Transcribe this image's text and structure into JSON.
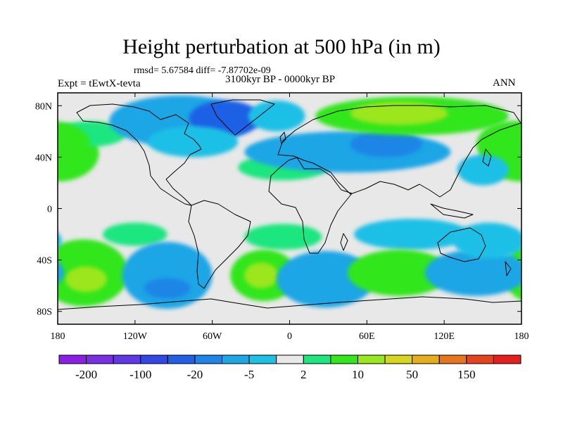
{
  "figure": {
    "title": "Height perturbation at 500 hPa (in m)",
    "stats": "rmsd= 5.67584 diff= -7.87702e-09",
    "left_label": "Expt = tEwtX-tevta",
    "center_label": "3100kyr BP - 0000kyr BP",
    "right_label": "ANN"
  },
  "chart_data": {
    "type": "heatmap",
    "projection": "cylindrical equidistant",
    "x_range": [
      -180,
      180
    ],
    "y_range": [
      -90,
      90
    ],
    "x_ticks": [
      {
        "value": -180,
        "label": "180"
      },
      {
        "value": -120,
        "label": "120W"
      },
      {
        "value": -60,
        "label": "60W"
      },
      {
        "value": 0,
        "label": "0"
      },
      {
        "value": 60,
        "label": "60E"
      },
      {
        "value": 120,
        "label": "120E"
      },
      {
        "value": 180,
        "label": "180"
      }
    ],
    "y_ticks": [
      {
        "value": 80,
        "label": "80N"
      },
      {
        "value": 40,
        "label": "40N"
      },
      {
        "value": 0,
        "label": "0"
      },
      {
        "value": -40,
        "label": "40S"
      },
      {
        "value": -80,
        "label": "80S"
      }
    ],
    "colorbar": {
      "colors": [
        "#8c1ee6",
        "#7a2fe6",
        "#6038e6",
        "#3346e6",
        "#1f60e6",
        "#1f85e6",
        "#1fa6e6",
        "#1fc0e6",
        "#e8e8e8",
        "#1ee67f",
        "#33e61e",
        "#9be61e",
        "#d6d61e",
        "#e6ae1e",
        "#e6751e",
        "#e6421e",
        "#e61e1e"
      ],
      "labels": [
        "-200",
        "-100",
        "-20",
        "-5",
        "2",
        "10",
        "50",
        "150"
      ]
    },
    "anomalies": [
      {
        "lon": -172,
        "lat": 43,
        "rx": 14,
        "ry": 14,
        "level": 2
      },
      {
        "lon": -180,
        "lat": 43,
        "rx": 32,
        "ry": 22,
        "level": 1
      },
      {
        "lon": -155,
        "lat": 58,
        "rx": 28,
        "ry": 10,
        "level": 0
      },
      {
        "lon": -85,
        "lat": 68,
        "rx": 55,
        "ry": 20,
        "level": -2
      },
      {
        "lon": -50,
        "lat": 70,
        "rx": 28,
        "ry": 14,
        "level": -4
      },
      {
        "lon": -75,
        "lat": 52,
        "rx": 35,
        "ry": 12,
        "level": -1
      },
      {
        "lon": -10,
        "lat": 72,
        "rx": 22,
        "ry": 12,
        "level": -1
      },
      {
        "lon": -5,
        "lat": 32,
        "rx": 35,
        "ry": 10,
        "level": 0
      },
      {
        "lon": 45,
        "lat": 44,
        "rx": 80,
        "ry": 16,
        "level": -2
      },
      {
        "lon": 75,
        "lat": 50,
        "rx": 28,
        "ry": 10,
        "level": -3
      },
      {
        "lon": 95,
        "lat": 72,
        "rx": 75,
        "ry": 15,
        "level": 1
      },
      {
        "lon": 85,
        "lat": 74,
        "rx": 38,
        "ry": 9,
        "level": 2
      },
      {
        "lon": 175,
        "lat": 50,
        "rx": 30,
        "ry": 18,
        "level": 1
      },
      {
        "lon": 150,
        "lat": 30,
        "rx": 20,
        "ry": 12,
        "level": -1
      },
      {
        "lon": -120,
        "lat": -20,
        "rx": 25,
        "ry": 9,
        "level": 0
      },
      {
        "lon": -5,
        "lat": -22,
        "rx": 30,
        "ry": 10,
        "level": 0
      },
      {
        "lon": 95,
        "lat": -20,
        "rx": 45,
        "ry": 12,
        "level": -1
      },
      {
        "lon": -160,
        "lat": -50,
        "rx": 35,
        "ry": 26,
        "level": 1
      },
      {
        "lon": -158,
        "lat": -55,
        "rx": 16,
        "ry": 10,
        "level": 2
      },
      {
        "lon": -95,
        "lat": -52,
        "rx": 35,
        "ry": 26,
        "level": -2
      },
      {
        "lon": -95,
        "lat": -62,
        "rx": 18,
        "ry": 8,
        "level": -3
      },
      {
        "lon": -20,
        "lat": -52,
        "rx": 26,
        "ry": 20,
        "level": 1
      },
      {
        "lon": -22,
        "lat": -52,
        "rx": 13,
        "ry": 10,
        "level": 2
      },
      {
        "lon": 28,
        "lat": -55,
        "rx": 38,
        "ry": 22,
        "level": -2
      },
      {
        "lon": 85,
        "lat": -50,
        "rx": 40,
        "ry": 18,
        "level": 1
      },
      {
        "lon": 145,
        "lat": -50,
        "rx": 40,
        "ry": 18,
        "level": -2
      },
      {
        "lon": 155,
        "lat": -25,
        "rx": 28,
        "ry": 14,
        "level": -1
      }
    ]
  }
}
